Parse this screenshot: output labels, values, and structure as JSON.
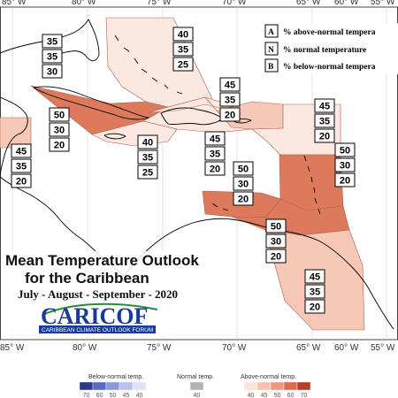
{
  "lon_labels_top": [
    "85° W",
    "80° W",
    "75° W",
    "70° W",
    "65° W",
    "60° W",
    "55° W"
  ],
  "lon_labels_bottom": [
    "85° W",
    "80° W",
    "75° W",
    "70° W",
    "65° W",
    "60° W",
    "55° W"
  ],
  "legend_key": [
    {
      "letter": "A",
      "text": "% above-normal tempera"
    },
    {
      "letter": "N",
      "text": "% normal temperature"
    },
    {
      "letter": "B",
      "text": "% below-normal tempera"
    }
  ],
  "regions": [
    {
      "name": "bahamas",
      "a": "40",
      "n": "35",
      "b": "25"
    },
    {
      "name": "west",
      "a": "35",
      "n": "35",
      "b": "30"
    },
    {
      "name": "cuba",
      "a": "50",
      "n": "30",
      "b": "20"
    },
    {
      "name": "jamaica",
      "a": "40",
      "n": "35",
      "b": "25"
    },
    {
      "name": "hispaniola",
      "a": "45",
      "n": "35",
      "b": "20"
    },
    {
      "name": "puertorico",
      "a": "45",
      "n": "35",
      "b": "20"
    },
    {
      "name": "atlantic",
      "a": "45",
      "n": "35",
      "b": "20"
    },
    {
      "name": "leewards",
      "a": "50",
      "n": "30",
      "b": "20"
    },
    {
      "name": "central",
      "a": "50",
      "n": "30",
      "b": "20"
    },
    {
      "name": "abc",
      "a": "50",
      "n": "30",
      "b": "20"
    },
    {
      "name": "belize",
      "a": "45",
      "n": "35",
      "b": "20"
    },
    {
      "name": "guianas",
      "a": "45",
      "n": "35",
      "b": "20"
    }
  ],
  "title": {
    "line1": "Mean Temperature Outlook",
    "line2": "for the Caribbean",
    "period": "July - August - September - 2020"
  },
  "logo": {
    "name": "CARICOF",
    "tagline": "CARIBBEAN CLIMATE OUTLOOK FORUM"
  },
  "colorbar": {
    "below_label": "Below-normal temp.",
    "normal_label": "Normal temp.",
    "above_label": "Above-normal temp.",
    "below_ticks": [
      "70",
      "60",
      "50",
      "45",
      "40"
    ],
    "normal_ticks": [
      "40"
    ],
    "above_ticks": [
      "40",
      "45",
      "50",
      "60",
      "70"
    ],
    "below_colors": [
      "#2b3a8c",
      "#5a6cc0",
      "#8d9ad8",
      "#b9c1e8",
      "#dde1f4"
    ],
    "normal_colors": [
      "#b3b3b3"
    ],
    "above_colors": [
      "#fbe3da",
      "#f6c2b0",
      "#ee9a80",
      "#dd6a4e",
      "#b5402a"
    ]
  },
  "colors": {
    "cat_40": "#fbe8e0",
    "cat_45": "#f7c8b6",
    "cat_50": "#de7a5c",
    "coast": "#000000"
  }
}
